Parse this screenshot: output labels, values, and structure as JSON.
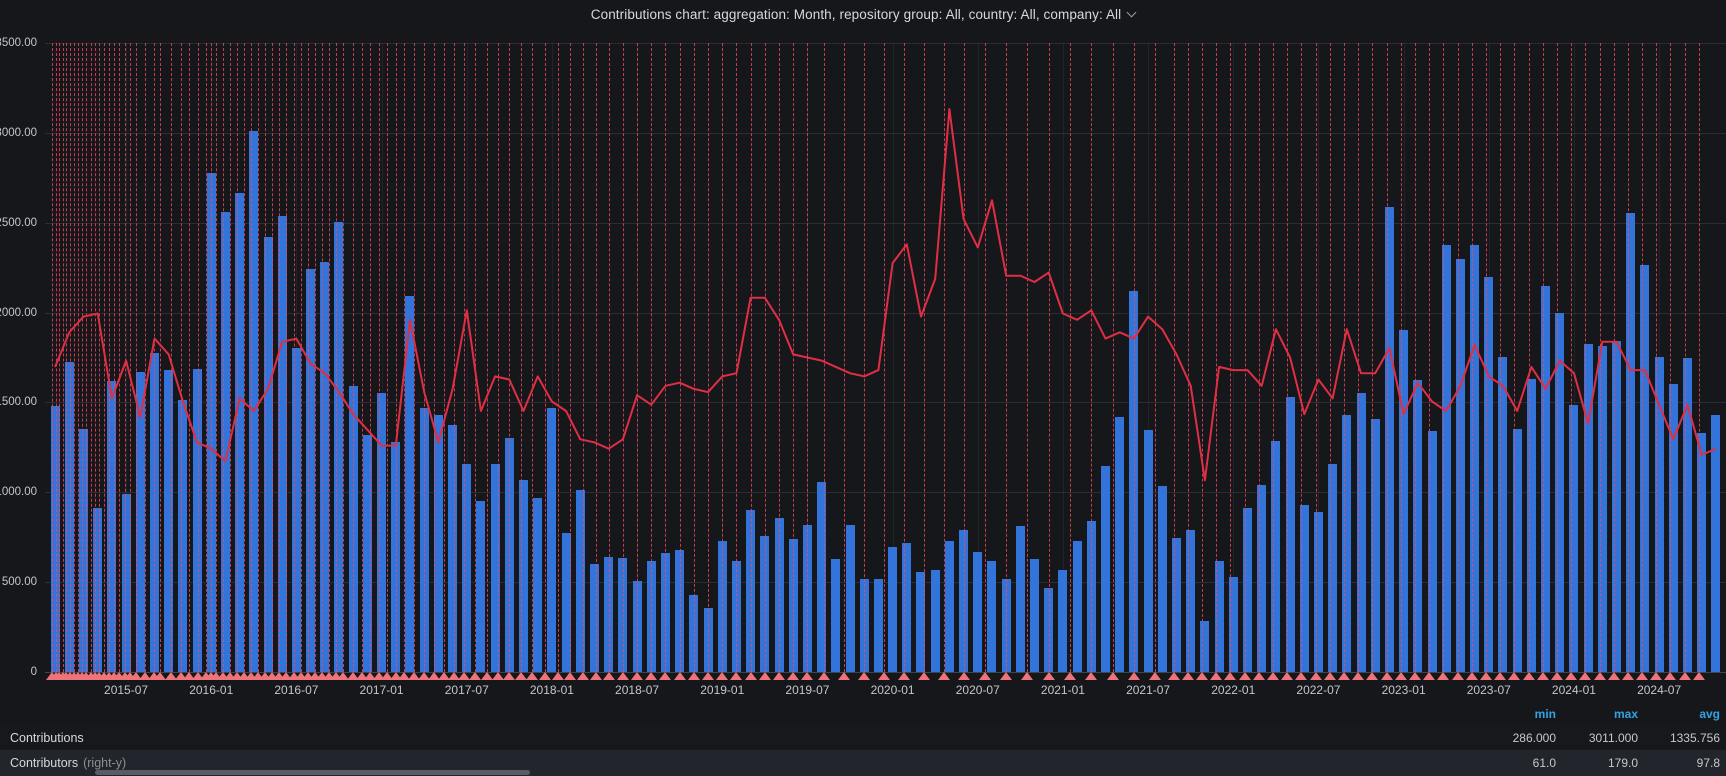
{
  "title": {
    "text": "Contributions chart: aggregation: Month, repository group: All, country: All, company: All"
  },
  "colors": {
    "background": "#15171b",
    "bar": "#3274d9",
    "line": "#e02f44",
    "annotation": "#f2495c",
    "annotation_marker": "#ee737b",
    "legend_header": "#33a2e5",
    "axis_text": "#c3c6cb"
  },
  "chart_data": {
    "type": "bar",
    "title": "Contributions chart: aggregation: Month, repository group: All, country: All, company: All",
    "xlabel": "",
    "ylabel": "",
    "y_axis": {
      "min": 0,
      "max": 3500,
      "step": 500,
      "tick_labels": [
        "3500.00",
        "3000.00",
        "2500.00",
        "2000.00",
        "1500.00",
        "1000.00",
        "500.00",
        "0"
      ]
    },
    "right_y_axis": {
      "min": 0,
      "max": 200,
      "labels_visible": false
    },
    "x_tick_labels": [
      "2015-07",
      "2016-01",
      "2016-07",
      "2017-01",
      "2017-07",
      "2018-01",
      "2018-07",
      "2019-01",
      "2019-07",
      "2020-01",
      "2020-07",
      "2021-01",
      "2021-07",
      "2022-01",
      "2022-07",
      "2023-01",
      "2023-07",
      "2024-01",
      "2024-07"
    ],
    "x_tick_first_index": 5,
    "x_tick_step": 6,
    "categories": [
      "2015-02",
      "2015-03",
      "2015-04",
      "2015-05",
      "2015-06",
      "2015-07",
      "2015-08",
      "2015-09",
      "2015-10",
      "2015-11",
      "2015-12",
      "2016-01",
      "2016-02",
      "2016-03",
      "2016-04",
      "2016-05",
      "2016-06",
      "2016-07",
      "2016-08",
      "2016-09",
      "2016-10",
      "2016-11",
      "2016-12",
      "2017-01",
      "2017-02",
      "2017-03",
      "2017-04",
      "2017-05",
      "2017-06",
      "2017-07",
      "2017-08",
      "2017-09",
      "2017-10",
      "2017-11",
      "2017-12",
      "2018-01",
      "2018-02",
      "2018-03",
      "2018-04",
      "2018-05",
      "2018-06",
      "2018-07",
      "2018-08",
      "2018-09",
      "2018-10",
      "2018-11",
      "2018-12",
      "2019-01",
      "2019-02",
      "2019-03",
      "2019-04",
      "2019-05",
      "2019-06",
      "2019-07",
      "2019-08",
      "2019-09",
      "2019-10",
      "2019-11",
      "2019-12",
      "2020-01",
      "2020-02",
      "2020-03",
      "2020-04",
      "2020-05",
      "2020-06",
      "2020-07",
      "2020-08",
      "2020-09",
      "2020-10",
      "2020-11",
      "2020-12",
      "2021-01",
      "2021-02",
      "2021-03",
      "2021-04",
      "2021-05",
      "2021-06",
      "2021-07",
      "2021-08",
      "2021-09",
      "2021-10",
      "2021-11",
      "2021-12",
      "2022-01",
      "2022-02",
      "2022-03",
      "2022-04",
      "2022-05",
      "2022-06",
      "2022-07",
      "2022-08",
      "2022-09",
      "2022-10",
      "2022-11",
      "2022-12",
      "2023-01",
      "2023-02",
      "2023-03",
      "2023-04",
      "2023-05",
      "2023-06",
      "2023-07",
      "2023-08",
      "2023-09",
      "2023-10",
      "2023-11",
      "2023-12",
      "2024-01",
      "2024-02",
      "2024-03",
      "2024-04",
      "2024-05",
      "2024-06",
      "2024-07",
      "2024-08",
      "2024-09",
      "2024-10",
      "2024-11"
    ],
    "series": [
      {
        "name": "Contributions",
        "type": "bar",
        "axis": "left",
        "color": "#3274d9",
        "values": [
          1480,
          1725,
          1350,
          910,
          1620,
          990,
          1670,
          1775,
          1680,
          1515,
          1685,
          2775,
          2560,
          2665,
          3011,
          2420,
          2535,
          1805,
          2245,
          2280,
          2505,
          1590,
          1320,
          1555,
          1280,
          2090,
          1470,
          1430,
          1375,
          1160,
          950,
          1155,
          1300,
          1070,
          970,
          1470,
          775,
          1015,
          600,
          640,
          635,
          505,
          620,
          660,
          680,
          430,
          355,
          730,
          615,
          900,
          755,
          855,
          740,
          820,
          1055,
          630,
          820,
          515,
          515,
          695,
          720,
          555,
          570,
          730,
          790,
          670,
          615,
          515,
          810,
          630,
          470,
          570,
          730,
          840,
          1145,
          1420,
          2120,
          1345,
          1035,
          745,
          790,
          286,
          620,
          530,
          910,
          1040,
          1285,
          1530,
          930,
          890,
          1155,
          1430,
          1550,
          1410,
          2585,
          1905,
          1625,
          1340,
          2375,
          2300,
          2375,
          2200,
          1755,
          1355,
          1630,
          2150,
          2000,
          1485,
          1825,
          1815,
          1840,
          2555,
          2265,
          1755,
          1605,
          1750,
          1330,
          1430
        ]
      },
      {
        "name": "Contributors",
        "type": "line",
        "axis": "right",
        "color": "#e02f44",
        "values": [
          97,
          108,
          113,
          114,
          87,
          99,
          81,
          106,
          101,
          86,
          73,
          71,
          67,
          87,
          83,
          90,
          105,
          106,
          98,
          95,
          89,
          82,
          77,
          72,
          72,
          112,
          89,
          73,
          90,
          115,
          83,
          94,
          93,
          83,
          94,
          86,
          83,
          74,
          73,
          71,
          74,
          88,
          85,
          91,
          92,
          90,
          89,
          94,
          95,
          119,
          119,
          112,
          101,
          100,
          99,
          97,
          95,
          94,
          96,
          130,
          136,
          113,
          125,
          179,
          144,
          135,
          150,
          126,
          126,
          124,
          127,
          114,
          112,
          115,
          106,
          108,
          106,
          113,
          109,
          101,
          91,
          61,
          97,
          96,
          96,
          91,
          109,
          100,
          82,
          93,
          87,
          109,
          95,
          95,
          103,
          82,
          92,
          86,
          83,
          91,
          104,
          94,
          91,
          83,
          97,
          90,
          99,
          95,
          79,
          105,
          105,
          96,
          96,
          85,
          74,
          85,
          69,
          71
        ]
      }
    ],
    "annotations": {
      "style": "dashed-vertical-line-with-triangle-marker",
      "positions_month_index": [
        -0.2,
        0.05,
        0.3,
        0.55,
        0.8,
        1.05,
        1.3,
        1.6,
        1.9,
        2.2,
        2.5,
        2.8,
        3.1,
        3.45,
        3.8,
        4.15,
        4.5,
        4.9,
        5.3,
        5.7,
        6.3,
        7.0,
        7.4,
        8.2,
        8.9,
        9.4,
        10.1,
        10.6,
        11.0,
        11.35,
        11.8,
        12.3,
        12.8,
        13.3,
        13.8,
        14.3,
        14.8,
        15.3,
        15.8,
        16.3,
        16.8,
        17.3,
        17.8,
        18.3,
        18.8,
        19.3,
        19.8,
        20.3,
        21.0,
        21.6,
        22.2,
        22.8,
        23.4,
        24.0,
        24.6,
        25.3,
        26.0,
        26.7,
        27.4,
        28.1,
        28.8,
        29.6,
        30.4,
        31.2,
        32.0,
        32.8,
        33.6,
        34.5,
        35.4,
        36.3,
        37.2,
        38.1,
        39.0,
        40.0,
        41.0,
        42.0,
        43.0,
        44.0,
        45.0,
        46.0,
        47.0,
        48.0,
        49.0,
        50.0,
        51.0,
        52.0,
        53.0,
        54.2,
        55.6,
        57.0,
        58.4,
        59.8,
        61.2,
        62.6,
        64.0,
        65.5,
        67.0,
        68.5,
        70.0,
        71.5,
        73.0,
        74.5,
        76.0,
        77.5,
        78.8,
        79.8,
        80.8,
        81.8,
        82.8,
        83.8,
        84.8,
        85.8,
        86.8,
        87.8,
        88.8,
        89.8,
        90.8,
        91.8,
        92.8,
        93.8,
        94.8,
        95.8,
        96.8,
        97.8,
        98.8,
        99.8,
        100.8,
        101.8,
        102.8,
        103.8,
        104.8,
        105.8,
        106.8,
        107.8,
        108.8,
        109.8,
        110.8,
        111.8,
        112.8,
        113.8,
        114.8,
        115.8
      ]
    },
    "legend": {
      "headers": [
        "min",
        "max",
        "avg"
      ],
      "rows": [
        {
          "label": "Contributions",
          "suffix": "",
          "min": "286.000",
          "max": "3011.000",
          "avg": "1335.756"
        },
        {
          "label": "Contributors",
          "suffix": "(right-y)",
          "min": "61.0",
          "max": "179.0",
          "avg": "97.8"
        }
      ]
    }
  }
}
